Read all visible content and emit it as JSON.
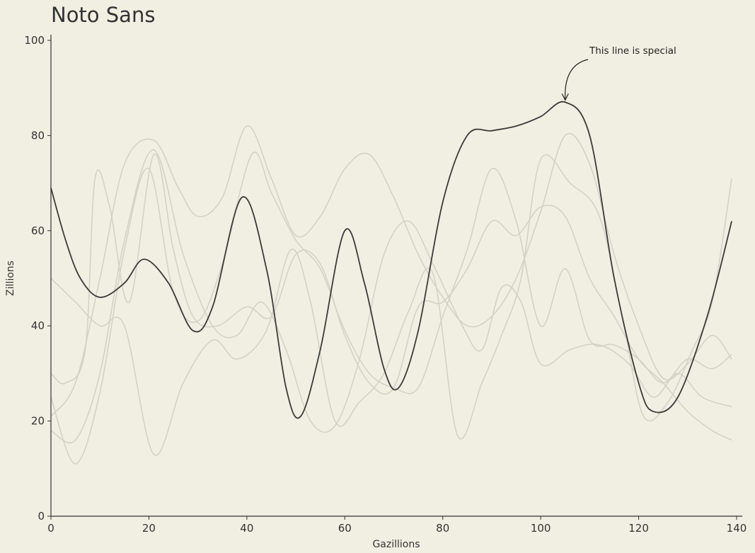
{
  "chart_data": {
    "type": "line",
    "title": "Noto Sans",
    "xlabel": "Gazillions",
    "ylabel": "Zillions",
    "xlim": [
      0,
      140
    ],
    "ylim": [
      0,
      100
    ],
    "xticks": [
      0,
      20,
      40,
      60,
      80,
      100,
      120,
      140
    ],
    "yticks": [
      0,
      20,
      40,
      60,
      80,
      100
    ],
    "grid": false,
    "colors": {
      "background": "#f1efe2",
      "highlight": "#3a3a3a",
      "background_lines": "#d4d2c6",
      "axis": "#333333"
    },
    "annotation": {
      "text": "This line is special",
      "x": 105,
      "y": 87
    },
    "series": [
      {
        "x": [
          0,
          5,
          10,
          15,
          21,
          26,
          30,
          35,
          40,
          45,
          50,
          55,
          60,
          65,
          70,
          75,
          80,
          85,
          90,
          95,
          100,
          105,
          110,
          115,
          120,
          125,
          130,
          135,
          139
        ],
        "y": [
          21,
          28,
          50,
          74,
          79,
          69,
          63,
          67,
          82,
          71,
          59,
          63,
          73,
          76,
          67,
          55,
          46,
          40,
          42,
          50,
          64,
          80,
          74,
          55,
          40,
          29,
          32,
          38,
          33
        ],
        "highlight": false
      },
      {
        "x": [
          0,
          3,
          7,
          9,
          12,
          16,
          21,
          25,
          29,
          34,
          40,
          45,
          50,
          55,
          60,
          65,
          70,
          75,
          80,
          85,
          90,
          95,
          100,
          105,
          110,
          115,
          120,
          125,
          130,
          135,
          139
        ],
        "y": [
          30,
          28,
          35,
          71,
          65,
          45,
          76,
          56,
          42,
          40,
          44,
          42,
          55,
          53,
          38,
          28,
          27,
          44,
          45,
          52,
          62,
          59,
          65,
          63,
          50,
          42,
          33,
          28,
          22,
          18,
          16
        ],
        "highlight": false
      },
      {
        "x": [
          0,
          5,
          10,
          15,
          20,
          25,
          30,
          35,
          41,
          45,
          50,
          55,
          60,
          65,
          70,
          75,
          80,
          85,
          90,
          95,
          100,
          105,
          110,
          115,
          120,
          125,
          130,
          135,
          139
        ],
        "y": [
          25,
          11,
          26,
          56,
          73,
          47,
          41,
          53,
          76,
          68,
          58,
          52,
          39,
          30,
          27,
          27,
          42,
          56,
          73,
          62,
          40,
          52,
          37,
          36,
          33,
          28,
          33,
          31,
          34
        ],
        "highlight": false
      },
      {
        "x": [
          0,
          5,
          10,
          15,
          21,
          27,
          33,
          38,
          43,
          48,
          53,
          58,
          63,
          68,
          73,
          78,
          84,
          88,
          92,
          96,
          100,
          106,
          112,
          118,
          123,
          128,
          133,
          139
        ],
        "y": [
          18,
          16,
          30,
          58,
          77,
          55,
          40,
          38,
          45,
          35,
          20,
          19,
          33,
          55,
          62,
          53,
          40,
          35,
          48,
          45,
          32,
          35,
          36,
          32,
          25,
          30,
          25,
          23
        ],
        "highlight": false
      },
      {
        "x": [
          0,
          5,
          10,
          15,
          21,
          27,
          33,
          38,
          44,
          49,
          53,
          58,
          63,
          68,
          73,
          78,
          83,
          88,
          92,
          96,
          100,
          106,
          112,
          117,
          121,
          126,
          131,
          135,
          139
        ],
        "y": [
          50,
          45,
          40,
          40,
          13,
          28,
          37,
          33,
          39,
          56,
          45,
          20,
          24,
          30,
          43,
          51,
          17,
          28,
          38,
          50,
          75,
          70,
          63,
          40,
          21,
          24,
          35,
          45,
          71
        ],
        "highlight": false
      },
      {
        "x": [
          0,
          3,
          6,
          10,
          15,
          19,
          24,
          29,
          33,
          39,
          44,
          48,
          51,
          55,
          60,
          64,
          68,
          71,
          75,
          80,
          85,
          90,
          95,
          100,
          105,
          110,
          115,
          120,
          123,
          128,
          134,
          139
        ],
        "y": [
          69,
          58,
          50,
          46,
          49,
          54,
          49,
          39,
          44,
          67,
          52,
          27,
          21,
          35,
          60,
          49,
          31,
          27,
          39,
          66,
          80,
          81,
          82,
          84,
          87,
          80,
          50,
          28,
          22,
          25,
          42,
          62
        ],
        "highlight": true
      }
    ]
  }
}
